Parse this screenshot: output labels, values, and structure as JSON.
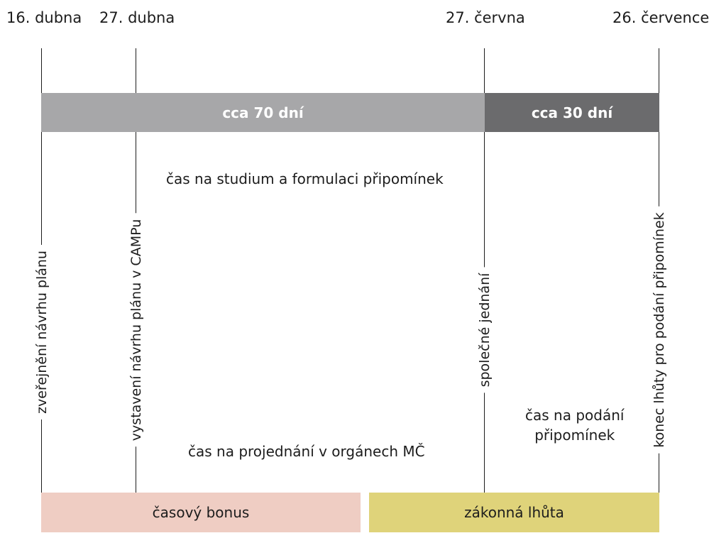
{
  "dates": [
    "16. dubna",
    "27. dubna",
    "27. června",
    "26. července"
  ],
  "bars": {
    "long_label": "cca 70 dní",
    "short_label": "cca 30 dní"
  },
  "milestones": [
    "zveřejnění návrhu plánu",
    "vystavení návrhu plánu v CAMPu",
    "společné jednání",
    "konec lhůty pro podání připomínek"
  ],
  "labels": {
    "study": "čas na studium a formulaci připomínek",
    "discussion": "čas na projednání v orgánech MČ",
    "submission_line1": "čas na podání",
    "submission_line2": "připomínek"
  },
  "bottom": {
    "bonus": "časový bonus",
    "legal": "zákonná lhůta"
  },
  "colors": {
    "bar_light": "#a7a7a9",
    "bar_dark": "#6b6b6d",
    "bonus": "#efcdc3",
    "legal": "#dfd37a"
  }
}
